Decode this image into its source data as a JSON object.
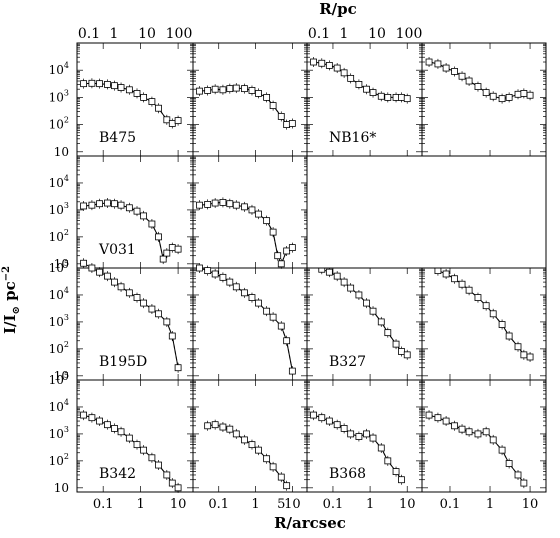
{
  "figure": {
    "top_axis_label": "R/pc",
    "bottom_axis_label": "R/arcsec",
    "y_axis_label": "I/I",
    "y_axis_label_sub": "⊙",
    "y_axis_label_unit": " pc",
    "y_axis_label_exp": "−2"
  },
  "chart_data": [
    {
      "type": "scatter",
      "panel": "B475 (left)",
      "label": "B475",
      "log_x": true,
      "log_y": true,
      "xlim_arcsec": [
        0.02,
        25
      ],
      "ylim": [
        5,
        100000
      ],
      "x_ticks_top_pc": [
        "0.1",
        "1",
        "10",
        "100"
      ],
      "series": [
        {
          "name": "",
          "x": [
            0.03,
            0.05,
            0.08,
            0.13,
            0.2,
            0.3,
            0.5,
            0.8,
            1.2,
            2,
            3,
            5,
            7,
            10
          ],
          "y": [
            3200,
            3300,
            3200,
            3000,
            2700,
            2300,
            1900,
            1400,
            1000,
            700,
            400,
            150,
            110,
            140
          ]
        }
      ]
    },
    {
      "type": "scatter",
      "panel": "B475 (right)",
      "label": "",
      "log_x": true,
      "log_y": true,
      "series": [
        {
          "name": "",
          "x": [
            0.03,
            0.05,
            0.08,
            0.13,
            0.2,
            0.3,
            0.5,
            0.8,
            1.2,
            2,
            3,
            5,
            7,
            10
          ],
          "y": [
            1700,
            1800,
            2000,
            1900,
            2100,
            2200,
            2100,
            1800,
            1400,
            1000,
            500,
            200,
            100,
            110
          ]
        }
      ]
    },
    {
      "type": "scatter",
      "panel": "NB16* (left)",
      "label": "NB16*",
      "log_x": true,
      "log_y": true,
      "x_ticks_top_pc": [
        "0.1",
        "1",
        "10",
        "100"
      ],
      "series": [
        {
          "name": "",
          "x": [
            0.03,
            0.05,
            0.08,
            0.13,
            0.2,
            0.3,
            0.5,
            0.8,
            1.2,
            2,
            3,
            5,
            7,
            10
          ],
          "y": [
            20000,
            18000,
            15000,
            12000,
            8000,
            5000,
            3000,
            2000,
            1500,
            1100,
            1000,
            1000,
            1000,
            900
          ]
        }
      ]
    },
    {
      "type": "scatter",
      "panel": "NB16* (right)",
      "label": "",
      "log_x": true,
      "log_y": true,
      "series": [
        {
          "name": "",
          "x": [
            0.03,
            0.05,
            0.08,
            0.13,
            0.2,
            0.3,
            0.5,
            0.8,
            1.2,
            2,
            3,
            5,
            7,
            10
          ],
          "y": [
            20000,
            17000,
            12000,
            9000,
            6000,
            4000,
            2500,
            1500,
            1100,
            900,
            1000,
            1300,
            1400,
            1200
          ]
        }
      ]
    },
    {
      "type": "scatter",
      "panel": "V031 (left)",
      "label": "V031",
      "log_x": true,
      "log_y": true,
      "series": [
        {
          "name": "",
          "x": [
            0.03,
            0.05,
            0.08,
            0.13,
            0.2,
            0.3,
            0.5,
            0.8,
            1.2,
            2,
            3,
            4,
            5,
            7,
            10
          ],
          "y": [
            1400,
            1500,
            1700,
            1800,
            1700,
            1500,
            1200,
            900,
            600,
            300,
            100,
            15,
            25,
            40,
            35
          ]
        }
      ]
    },
    {
      "type": "scatter",
      "panel": "V031 (right)",
      "label": "",
      "log_x": true,
      "log_y": true,
      "series": [
        {
          "name": "",
          "x": [
            0.03,
            0.05,
            0.08,
            0.13,
            0.2,
            0.3,
            0.5,
            0.8,
            1.2,
            2,
            3,
            4,
            5,
            7,
            10
          ],
          "y": [
            1500,
            1600,
            1800,
            1900,
            1700,
            1500,
            1300,
            1000,
            700,
            400,
            150,
            20,
            10,
            30,
            40
          ]
        }
      ]
    },
    {
      "type": "scatter",
      "panel": "B195D (left)",
      "label": "B195D",
      "log_x": true,
      "log_y": true,
      "series": [
        {
          "name": "",
          "x": [
            0.03,
            0.05,
            0.08,
            0.13,
            0.2,
            0.3,
            0.5,
            0.8,
            1.2,
            2,
            3,
            5,
            7,
            10
          ],
          "y": [
            150000,
            100000,
            70000,
            50000,
            30000,
            20000,
            12000,
            8000,
            5000,
            3000,
            2000,
            1000,
            300,
            20
          ]
        }
      ]
    },
    {
      "type": "scatter",
      "panel": "B195D (right)",
      "label": "",
      "log_x": true,
      "log_y": true,
      "series": [
        {
          "name": "",
          "x": [
            0.03,
            0.05,
            0.08,
            0.13,
            0.2,
            0.3,
            0.5,
            0.8,
            1.2,
            2,
            3,
            5,
            7,
            10
          ],
          "y": [
            100000,
            80000,
            60000,
            45000,
            30000,
            20000,
            12000,
            8000,
            5000,
            2500,
            1500,
            700,
            200,
            15
          ]
        }
      ]
    },
    {
      "type": "scatter",
      "panel": "B327 (left)",
      "label": "B327",
      "log_x": true,
      "log_y": true,
      "series": [
        {
          "name": "",
          "x": [
            0.05,
            0.08,
            0.13,
            0.2,
            0.3,
            0.5,
            0.8,
            1.2,
            2,
            3,
            5,
            7,
            10
          ],
          "y": [
            90000,
            70000,
            50000,
            30000,
            18000,
            10000,
            5000,
            2500,
            1000,
            400,
            150,
            80,
            60
          ]
        }
      ]
    },
    {
      "type": "scatter",
      "panel": "B327 (right)",
      "label": "",
      "log_x": true,
      "log_y": true,
      "series": [
        {
          "name": "",
          "x": [
            0.05,
            0.08,
            0.13,
            0.2,
            0.3,
            0.5,
            0.8,
            1.2,
            2,
            3,
            5,
            7,
            10
          ],
          "y": [
            80000,
            60000,
            40000,
            25000,
            15000,
            8000,
            4000,
            2000,
            800,
            300,
            120,
            60,
            50
          ]
        }
      ]
    },
    {
      "type": "scatter",
      "panel": "B342 (left)",
      "label": "B342",
      "log_x": true,
      "log_y": true,
      "x_ticks_bottom": [
        "0.1",
        "1",
        "10"
      ],
      "series": [
        {
          "name": "",
          "x": [
            0.03,
            0.05,
            0.08,
            0.13,
            0.2,
            0.3,
            0.5,
            0.8,
            1.2,
            2,
            3,
            5,
            7,
            10
          ],
          "y": [
            5000,
            4000,
            3000,
            2200,
            1600,
            1200,
            700,
            400,
            250,
            130,
            70,
            30,
            15,
            10
          ]
        }
      ]
    },
    {
      "type": "scatter",
      "panel": "B342 (right)",
      "label": "",
      "log_x": true,
      "log_y": true,
      "x_ticks_bottom": [
        "0.1",
        "1",
        "5",
        "10"
      ],
      "series": [
        {
          "name": "",
          "x": [
            0.05,
            0.08,
            0.13,
            0.2,
            0.3,
            0.5,
            0.8,
            1.2,
            2,
            3,
            5,
            7
          ],
          "y": [
            2000,
            2200,
            1800,
            1500,
            1000,
            600,
            400,
            250,
            120,
            60,
            25,
            12
          ]
        }
      ]
    },
    {
      "type": "scatter",
      "panel": "B368 (left)",
      "label": "B368",
      "log_x": true,
      "log_y": true,
      "x_ticks_bottom": [
        "0.1",
        "1",
        "10"
      ],
      "series": [
        {
          "name": "",
          "x": [
            0.03,
            0.05,
            0.08,
            0.13,
            0.2,
            0.3,
            0.5,
            0.8,
            1.2,
            2,
            3,
            5,
            7
          ],
          "y": [
            5000,
            4000,
            3000,
            2200,
            1600,
            1000,
            800,
            1000,
            700,
            300,
            100,
            40,
            20
          ]
        }
      ]
    },
    {
      "type": "scatter",
      "panel": "B368 (right)",
      "label": "",
      "log_x": true,
      "log_y": true,
      "x_ticks_bottom": [
        "0.1",
        "1",
        "10"
      ],
      "series": [
        {
          "name": "",
          "x": [
            0.03,
            0.05,
            0.08,
            0.13,
            0.2,
            0.3,
            0.5,
            0.8,
            1.2,
            2,
            3,
            5,
            7
          ],
          "y": [
            5000,
            4000,
            3000,
            2000,
            1500,
            1200,
            1000,
            1200,
            600,
            250,
            80,
            30,
            15
          ]
        }
      ]
    }
  ]
}
